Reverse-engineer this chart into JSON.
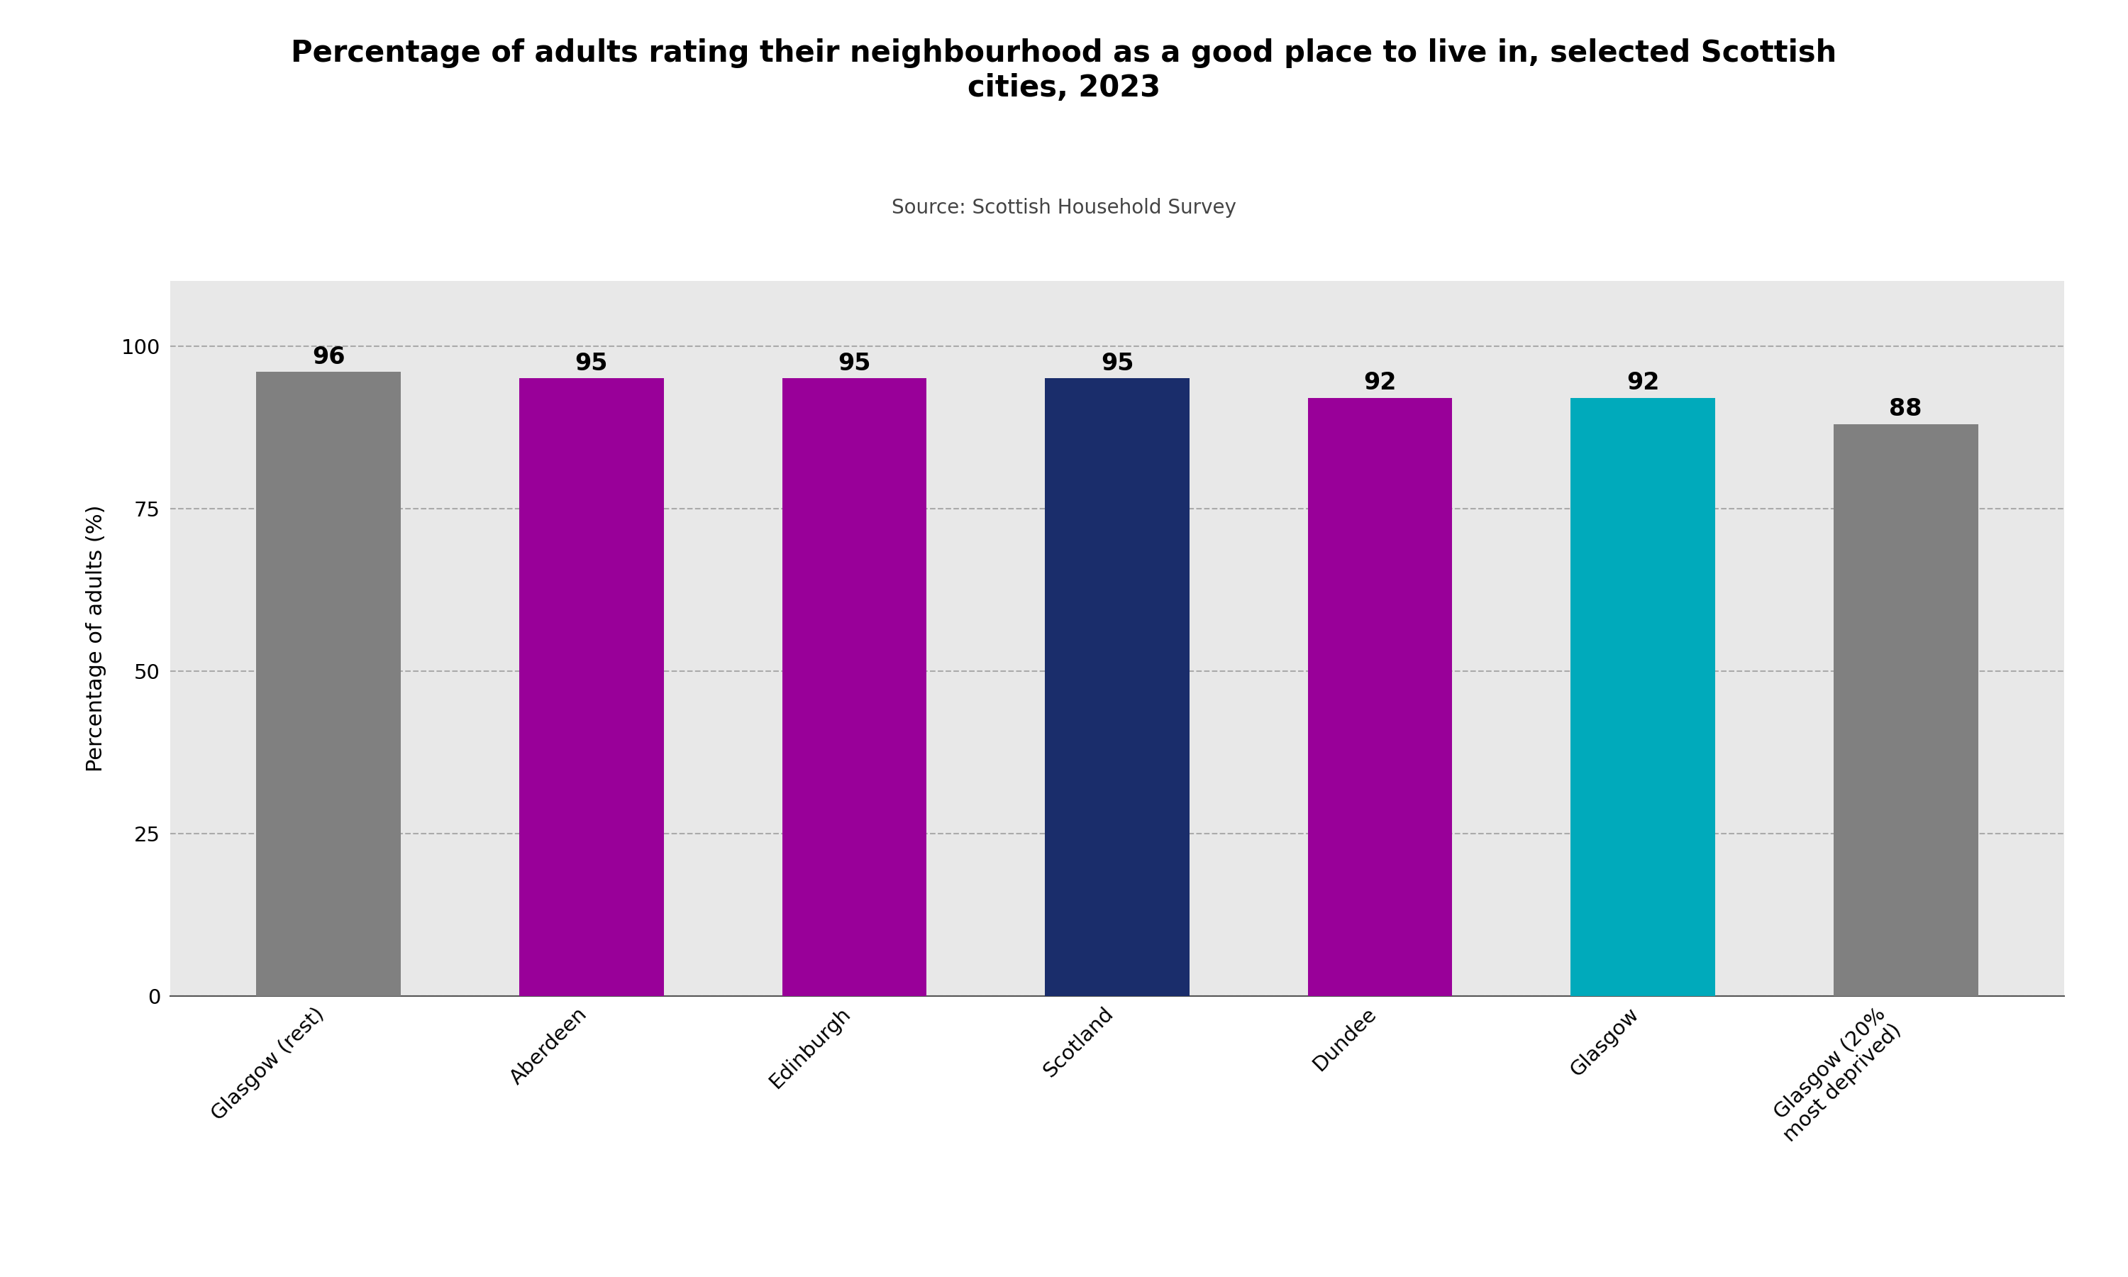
{
  "title": "Percentage of adults rating their neighbourhood as a good place to live in, selected Scottish\ncities, 2023",
  "subtitle": "Source: Scottish Household Survey",
  "categories": [
    "Glasgow (rest)",
    "Aberdeen",
    "Edinburgh",
    "Scotland",
    "Dundee",
    "Glasgow",
    "Glasgow (20%\nmost deprived)"
  ],
  "values": [
    96,
    95,
    95,
    95,
    92,
    92,
    88
  ],
  "bar_colors": [
    "#808080",
    "#990099",
    "#990099",
    "#1a2d6b",
    "#990099",
    "#00aabb",
    "#808080"
  ],
  "ylabel": "Percentage of adults (%)",
  "ylim": [
    0,
    110
  ],
  "yticks": [
    0,
    25,
    50,
    75,
    100
  ],
  "plot_bg_color": "#e8e8e8",
  "fig_bg_color": "#ffffff",
  "title_fontsize": 30,
  "subtitle_fontsize": 20,
  "ylabel_fontsize": 22,
  "tick_fontsize": 21,
  "value_label_fontsize": 24,
  "bar_width": 0.55
}
